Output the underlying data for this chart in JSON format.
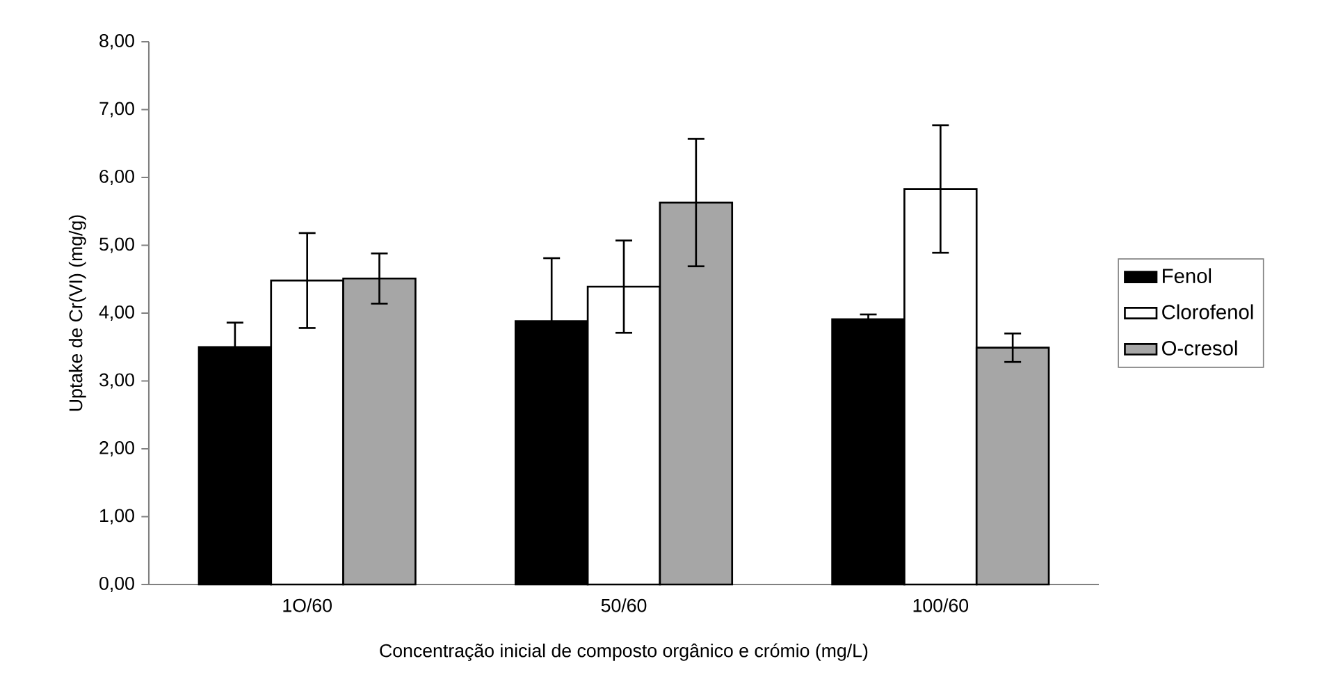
{
  "chart_data": {
    "type": "bar",
    "xlabel": "Concentração inicial de composto orgânico e crómio (mg/L)",
    "ylabel": "Uptake de Cr(VI) (mg/g)",
    "categories": [
      "1O/60",
      "50/60",
      "100/60"
    ],
    "series": [
      {
        "name": "Fenol",
        "color": "#000000",
        "values": [
          3.5,
          3.88,
          3.91
        ],
        "errors": [
          0.36,
          0.93,
          0.07
        ]
      },
      {
        "name": "Clorofenol",
        "color": "#ffffff",
        "values": [
          4.48,
          4.39,
          5.83
        ],
        "errors": [
          0.7,
          0.68,
          0.94
        ]
      },
      {
        "name": "O-cresol",
        "color": "#a6a6a6",
        "values": [
          4.51,
          5.63,
          3.49
        ],
        "errors": [
          0.37,
          0.94,
          0.21
        ]
      }
    ],
    "ylim": [
      0,
      8
    ],
    "yticks": [
      {
        "value": 0,
        "label": "0,00"
      },
      {
        "value": 1,
        "label": "1,00"
      },
      {
        "value": 2,
        "label": "2,00"
      },
      {
        "value": 3,
        "label": "3,00"
      },
      {
        "value": 4,
        "label": "4,00"
      },
      {
        "value": 5,
        "label": "5,00"
      },
      {
        "value": 6,
        "label": "6,00"
      },
      {
        "value": 7,
        "label": "7,00"
      },
      {
        "value": 8,
        "label": "8,00"
      }
    ],
    "grid": false,
    "legend": "right"
  }
}
